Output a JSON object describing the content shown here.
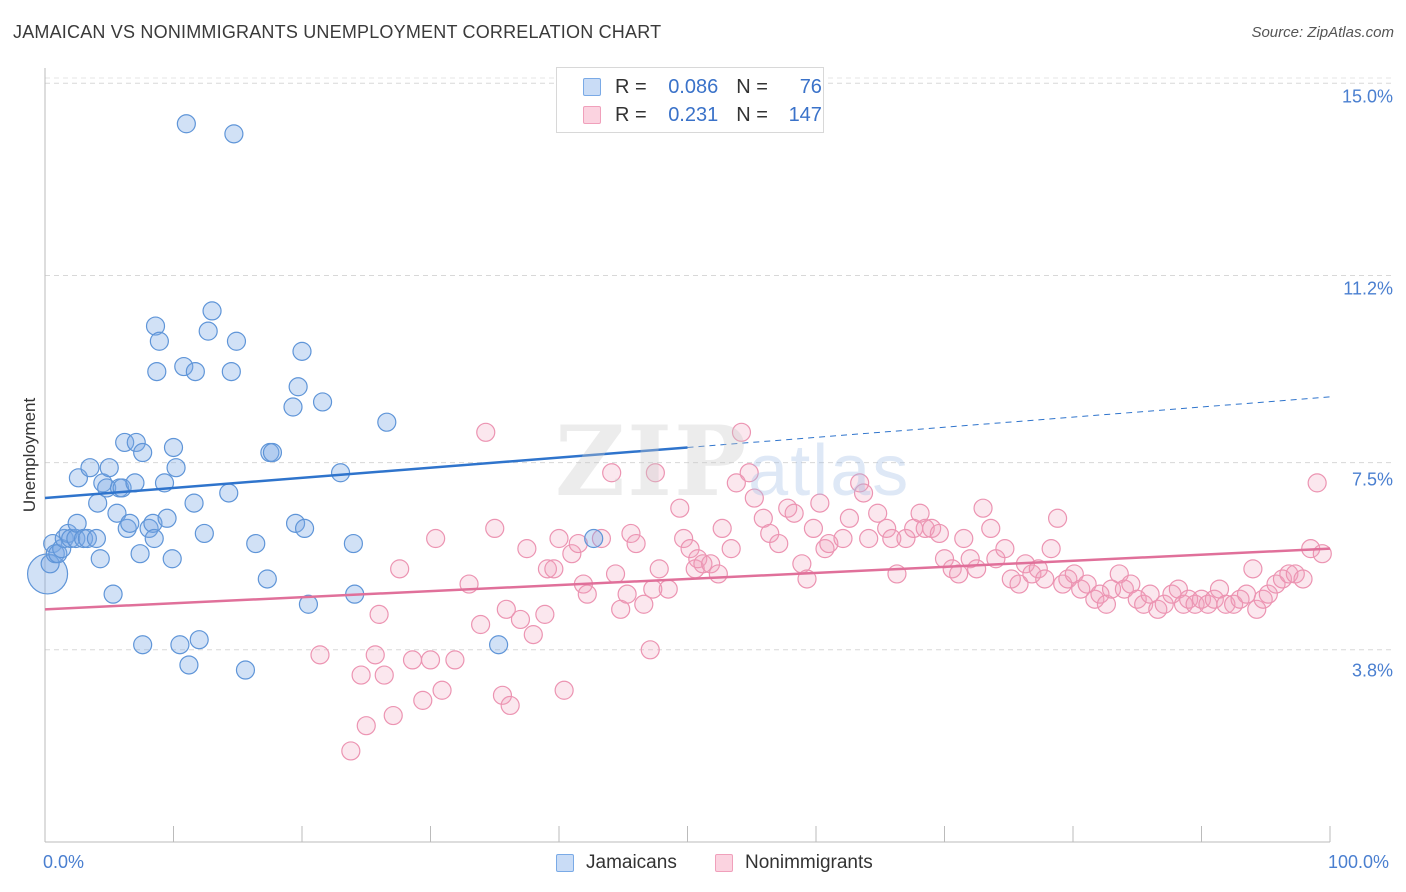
{
  "title": "JAMAICAN VS NONIMMIGRANTS UNEMPLOYMENT CORRELATION CHART",
  "source": "Source: ZipAtlas.com",
  "watermark": {
    "main": "ZIP",
    "sub": "atlas"
  },
  "legend": {
    "rows": [
      {
        "r_label": "R =",
        "r_value": "0.086",
        "n_label": "N =",
        "n_value": "76",
        "color": "#7aaae6"
      },
      {
        "r_label": "R =",
        "r_value": "0.231",
        "n_label": "N =",
        "n_value": "147",
        "color": "#f0a0bb"
      }
    ]
  },
  "bottom_legend": [
    "Jamaicans",
    "Nonimmigrants"
  ],
  "chart_data": {
    "type": "scatter",
    "title": "JAMAICAN VS NONIMMIGRANTS UNEMPLOYMENT CORRELATION CHART",
    "xlabel": "",
    "ylabel": "Unemployment",
    "xlim": [
      0,
      100
    ],
    "ylim": [
      0,
      15.5
    ],
    "x_tick_labels": [
      "0.0%",
      "100.0%"
    ],
    "y_ticks": [
      3.8,
      7.5,
      11.2,
      15.0
    ],
    "y_tick_labels": [
      "3.8%",
      "7.5%",
      "11.2%",
      "15.0%"
    ],
    "grid": true,
    "legend_position": "top-center",
    "series": [
      {
        "name": "Jamaicans",
        "color": "#7aaae6",
        "trend": {
          "x": [
            0,
            50
          ],
          "y": [
            6.8,
            7.8
          ]
        },
        "trend_extension": {
          "x": [
            50,
            100
          ],
          "y": [
            7.8,
            8.8
          ]
        },
        "points": [
          [
            0.2,
            5.3
          ],
          [
            0.4,
            5.5
          ],
          [
            0.6,
            5.9
          ],
          [
            0.8,
            5.7
          ],
          [
            1.0,
            5.7
          ],
          [
            1.3,
            5.8
          ],
          [
            1.5,
            6.0
          ],
          [
            1.8,
            6.1
          ],
          [
            2.0,
            6.0
          ],
          [
            2.4,
            6.0
          ],
          [
            2.6,
            7.2
          ],
          [
            2.5,
            6.3
          ],
          [
            3.0,
            6.0
          ],
          [
            3.3,
            6.0
          ],
          [
            3.5,
            7.4
          ],
          [
            4.0,
            6.0
          ],
          [
            4.1,
            6.7
          ],
          [
            4.3,
            5.6
          ],
          [
            4.5,
            7.1
          ],
          [
            4.8,
            7.0
          ],
          [
            5.0,
            7.4
          ],
          [
            5.3,
            4.9
          ],
          [
            5.6,
            6.5
          ],
          [
            5.8,
            7.0
          ],
          [
            6.0,
            7.0
          ],
          [
            6.4,
            6.2
          ],
          [
            6.2,
            7.9
          ],
          [
            6.6,
            6.3
          ],
          [
            7.0,
            7.1
          ],
          [
            7.1,
            7.9
          ],
          [
            7.4,
            5.7
          ],
          [
            7.6,
            7.7
          ],
          [
            7.6,
            3.9
          ],
          [
            8.1,
            6.2
          ],
          [
            8.4,
            6.3
          ],
          [
            8.5,
            6.0
          ],
          [
            8.6,
            10.2
          ],
          [
            8.9,
            9.9
          ],
          [
            8.7,
            9.3
          ],
          [
            9.3,
            7.1
          ],
          [
            9.5,
            6.4
          ],
          [
            9.9,
            5.6
          ],
          [
            10.0,
            7.8
          ],
          [
            10.2,
            7.4
          ],
          [
            10.5,
            3.9
          ],
          [
            10.8,
            9.4
          ],
          [
            11.0,
            14.2
          ],
          [
            11.2,
            3.5
          ],
          [
            11.6,
            6.7
          ],
          [
            11.7,
            9.3
          ],
          [
            12.0,
            4.0
          ],
          [
            12.4,
            6.1
          ],
          [
            12.7,
            10.1
          ],
          [
            13.0,
            10.5
          ],
          [
            14.3,
            6.9
          ],
          [
            14.5,
            9.3
          ],
          [
            14.7,
            14.0
          ],
          [
            14.9,
            9.9
          ],
          [
            15.6,
            3.4
          ],
          [
            16.4,
            5.9
          ],
          [
            17.3,
            5.2
          ],
          [
            17.5,
            7.7
          ],
          [
            17.7,
            7.7
          ],
          [
            19.3,
            8.6
          ],
          [
            19.5,
            6.3
          ],
          [
            19.7,
            9.0
          ],
          [
            20.0,
            9.7
          ],
          [
            20.2,
            6.2
          ],
          [
            20.5,
            4.7
          ],
          [
            21.6,
            8.7
          ],
          [
            23.0,
            7.3
          ],
          [
            24.0,
            5.9
          ],
          [
            24.1,
            4.9
          ],
          [
            26.6,
            8.3
          ],
          [
            35.3,
            3.9
          ],
          [
            42.7,
            6.0
          ]
        ]
      },
      {
        "name": "Nonimmigrants",
        "color": "#f0a0bb",
        "trend": {
          "x": [
            0,
            100
          ],
          "y": [
            4.6,
            5.8
          ]
        },
        "points": [
          [
            21.4,
            3.7
          ],
          [
            23.8,
            1.8
          ],
          [
            24.6,
            3.3
          ],
          [
            25.0,
            2.3
          ],
          [
            25.7,
            3.7
          ],
          [
            26.0,
            4.5
          ],
          [
            26.4,
            3.3
          ],
          [
            27.1,
            2.5
          ],
          [
            27.6,
            5.4
          ],
          [
            28.6,
            3.6
          ],
          [
            29.4,
            2.8
          ],
          [
            30.0,
            3.6
          ],
          [
            30.4,
            6.0
          ],
          [
            30.9,
            3.0
          ],
          [
            31.9,
            3.6
          ],
          [
            33.0,
            5.1
          ],
          [
            33.9,
            4.3
          ],
          [
            34.3,
            8.1
          ],
          [
            35.0,
            6.2
          ],
          [
            35.6,
            2.9
          ],
          [
            36.2,
            2.7
          ],
          [
            37.0,
            4.4
          ],
          [
            37.5,
            5.8
          ],
          [
            38.0,
            4.1
          ],
          [
            38.9,
            4.5
          ],
          [
            39.1,
            5.4
          ],
          [
            39.6,
            5.4
          ],
          [
            40.0,
            6.0
          ],
          [
            40.4,
            3.0
          ],
          [
            41.0,
            5.7
          ],
          [
            41.5,
            5.9
          ],
          [
            41.9,
            5.1
          ],
          [
            42.2,
            4.9
          ],
          [
            43.3,
            6.0
          ],
          [
            44.1,
            7.3
          ],
          [
            44.4,
            5.3
          ],
          [
            44.8,
            4.6
          ],
          [
            45.3,
            4.9
          ],
          [
            45.6,
            6.1
          ],
          [
            46.0,
            5.9
          ],
          [
            46.6,
            4.7
          ],
          [
            47.1,
            3.8
          ],
          [
            47.5,
            7.3
          ],
          [
            47.8,
            5.4
          ],
          [
            48.5,
            5.0
          ],
          [
            49.4,
            6.6
          ],
          [
            49.7,
            6.0
          ],
          [
            50.2,
            5.8
          ],
          [
            50.6,
            5.4
          ],
          [
            50.8,
            5.6
          ],
          [
            51.2,
            5.5
          ],
          [
            51.8,
            5.5
          ],
          [
            52.4,
            5.3
          ],
          [
            52.7,
            6.2
          ],
          [
            53.4,
            5.8
          ],
          [
            53.8,
            7.1
          ],
          [
            54.2,
            8.1
          ],
          [
            54.8,
            7.3
          ],
          [
            55.2,
            6.8
          ],
          [
            55.9,
            6.4
          ],
          [
            56.4,
            6.1
          ],
          [
            57.1,
            5.9
          ],
          [
            57.8,
            6.6
          ],
          [
            58.3,
            6.5
          ],
          [
            58.9,
            5.5
          ],
          [
            59.3,
            5.2
          ],
          [
            59.8,
            6.2
          ],
          [
            60.3,
            6.7
          ],
          [
            60.7,
            5.8
          ],
          [
            61.0,
            5.9
          ],
          [
            62.1,
            6.0
          ],
          [
            62.6,
            6.4
          ],
          [
            63.4,
            7.1
          ],
          [
            63.7,
            6.9
          ],
          [
            64.1,
            6.0
          ],
          [
            64.8,
            6.5
          ],
          [
            65.5,
            6.2
          ],
          [
            65.9,
            6.0
          ],
          [
            66.3,
            5.3
          ],
          [
            67.0,
            6.0
          ],
          [
            67.6,
            6.2
          ],
          [
            68.1,
            6.5
          ],
          [
            68.5,
            6.2
          ],
          [
            69.0,
            6.2
          ],
          [
            69.6,
            6.1
          ],
          [
            70.0,
            5.6
          ],
          [
            70.6,
            5.4
          ],
          [
            71.1,
            5.3
          ],
          [
            71.5,
            6.0
          ],
          [
            72.0,
            5.6
          ],
          [
            72.5,
            5.4
          ],
          [
            73.0,
            6.6
          ],
          [
            73.6,
            6.2
          ],
          [
            74.0,
            5.6
          ],
          [
            74.7,
            5.8
          ],
          [
            75.2,
            5.2
          ],
          [
            75.8,
            5.1
          ],
          [
            76.3,
            5.5
          ],
          [
            76.8,
            5.3
          ],
          [
            77.3,
            5.4
          ],
          [
            77.8,
            5.2
          ],
          [
            78.3,
            5.8
          ],
          [
            78.8,
            6.4
          ],
          [
            79.2,
            5.1
          ],
          [
            79.6,
            5.2
          ],
          [
            80.1,
            5.3
          ],
          [
            80.6,
            5.0
          ],
          [
            81.1,
            5.1
          ],
          [
            81.7,
            4.8
          ],
          [
            82.1,
            4.9
          ],
          [
            82.6,
            4.7
          ],
          [
            83.0,
            5.0
          ],
          [
            83.6,
            5.3
          ],
          [
            84.0,
            5.0
          ],
          [
            84.5,
            5.1
          ],
          [
            85.0,
            4.8
          ],
          [
            85.5,
            4.7
          ],
          [
            86.0,
            4.9
          ],
          [
            86.6,
            4.6
          ],
          [
            87.1,
            4.7
          ],
          [
            87.7,
            4.9
          ],
          [
            88.2,
            5.0
          ],
          [
            88.6,
            4.7
          ],
          [
            89.0,
            4.8
          ],
          [
            89.5,
            4.7
          ],
          [
            90.0,
            4.8
          ],
          [
            90.5,
            4.7
          ],
          [
            91.0,
            4.8
          ],
          [
            91.4,
            5.0
          ],
          [
            91.9,
            4.7
          ],
          [
            92.5,
            4.7
          ],
          [
            93.0,
            4.8
          ],
          [
            93.5,
            4.9
          ],
          [
            94.0,
            5.4
          ],
          [
            94.3,
            4.6
          ],
          [
            94.8,
            4.8
          ],
          [
            95.2,
            4.9
          ],
          [
            95.8,
            5.1
          ],
          [
            96.3,
            5.2
          ],
          [
            96.8,
            5.3
          ],
          [
            97.3,
            5.3
          ],
          [
            97.9,
            5.2
          ],
          [
            98.5,
            5.8
          ],
          [
            99.0,
            7.1
          ],
          [
            99.4,
            5.7
          ],
          [
            47.3,
            5.0
          ],
          [
            35.9,
            4.6
          ]
        ]
      }
    ]
  }
}
